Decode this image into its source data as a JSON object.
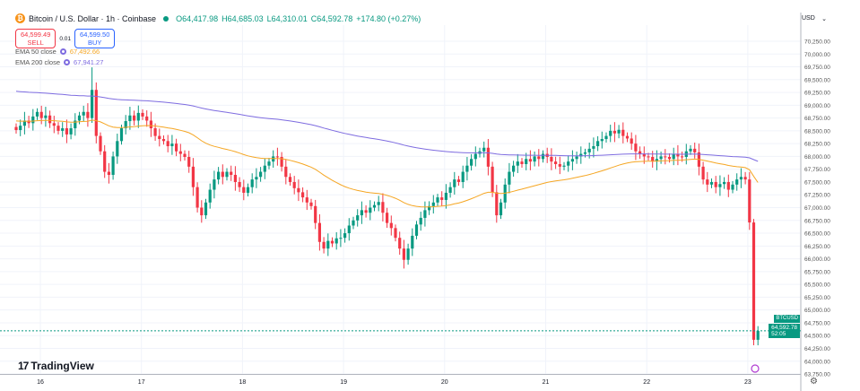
{
  "header": {
    "symbol_icon": "bitcoin-icon",
    "title": "Bitcoin / U.S. Dollar · 1h · Coinbase",
    "open": "O64,417.98",
    "high": "H64,685.03",
    "low": "L64,310.01",
    "close": "C64,592.78",
    "change": "+174.80 (+0.27%)"
  },
  "trade": {
    "sell_price": "64,599.49",
    "sell_label": "SELL",
    "spread": "0.01",
    "buy_price": "64,599.50",
    "buy_label": "BUY"
  },
  "indicators": [
    {
      "label": "EMA 50 close",
      "value": "67,492.66",
      "color": "#f5a623"
    },
    {
      "label": "EMA 200 close",
      "value": "67,941.27",
      "color": "#7e6ce0"
    }
  ],
  "currency": "USD",
  "logo": "TradingView",
  "price_tag": {
    "symbol": "BTCUSD",
    "price": "64,592.78",
    "countdown": "52:05"
  },
  "colors": {
    "up": "#089981",
    "down": "#f23645",
    "ema50": "#f5a623",
    "ema200": "#7e6ce0",
    "grid": "#f0f3fa"
  },
  "chart_data": {
    "type": "candlestick",
    "interval": "1h",
    "ylim": [
      63750,
      70500
    ],
    "y_ticks": [
      "70,250.00",
      "70,000.00",
      "69,750.00",
      "69,500.00",
      "69,250.00",
      "69,000.00",
      "68,750.00",
      "68,500.00",
      "68,250.00",
      "68,000.00",
      "67,750.00",
      "67,500.00",
      "67,250.00",
      "67,000.00",
      "66,750.00",
      "66,500.00",
      "66,250.00",
      "66,000.00",
      "65,750.00",
      "65,500.00",
      "65,250.00",
      "65,000.00",
      "64,750.00",
      "64,500.00",
      "64,250.00",
      "64,000.00",
      "63,750.00"
    ],
    "x_ticks": [
      "16",
      "17",
      "18",
      "19",
      "20",
      "21",
      "22",
      "23"
    ],
    "closes": [
      68515,
      68600,
      68700,
      68650,
      68780,
      68870,
      68750,
      68800,
      68650,
      68600,
      68500,
      68550,
      68430,
      68550,
      68700,
      68800,
      68870,
      68750,
      69300,
      68400,
      68100,
      67700,
      67640,
      68000,
      68300,
      68550,
      68690,
      68800,
      68700,
      68850,
      68780,
      68700,
      68550,
      68400,
      68340,
      68300,
      68200,
      68250,
      68100,
      68050,
      67990,
      67800,
      67400,
      67000,
      66850,
      67100,
      67350,
      67550,
      67700,
      67600,
      67700,
      67640,
      67500,
      67400,
      67290,
      67400,
      67550,
      67600,
      67700,
      67820,
      67900,
      68000,
      67990,
      67800,
      67600,
      67500,
      67380,
      67300,
      67200,
      67100,
      67030,
      66700,
      66330,
      66200,
      66350,
      66300,
      66400,
      66410,
      66500,
      66650,
      66750,
      66850,
      66950,
      66900,
      67000,
      67050,
      67110,
      66900,
      66700,
      66600,
      66410,
      66200,
      65980,
      66200,
      66450,
      66670,
      66800,
      66950,
      67030,
      67100,
      67200,
      67150,
      67290,
      67400,
      67550,
      67500,
      67700,
      67820,
      67950,
      68050,
      68100,
      68170,
      67800,
      67300,
      66850,
      67100,
      67450,
      67700,
      67820,
      67900,
      67850,
      67950,
      67900,
      68000,
      67950,
      68050,
      67990,
      67900,
      67850,
      67800,
      67820,
      67900,
      67950,
      68000,
      68050,
      68080,
      68150,
      68200,
      68300,
      68340,
      68400,
      68500,
      68450,
      68520,
      68400,
      68350,
      68250,
      68100,
      68050,
      68000,
      67990,
      67900,
      67950,
      68000,
      67990,
      67950,
      68050,
      68000,
      67990,
      68100,
      68150,
      68080,
      67800,
      67550,
      67450,
      67500,
      67400,
      67460,
      67500,
      67350,
      67450,
      67550,
      67600,
      67550,
      66710,
      64417.98,
      64592.78
    ],
    "last": {
      "open": 64417.98,
      "high": 64685.03,
      "low": 64310.01,
      "close": 64592.78
    }
  }
}
